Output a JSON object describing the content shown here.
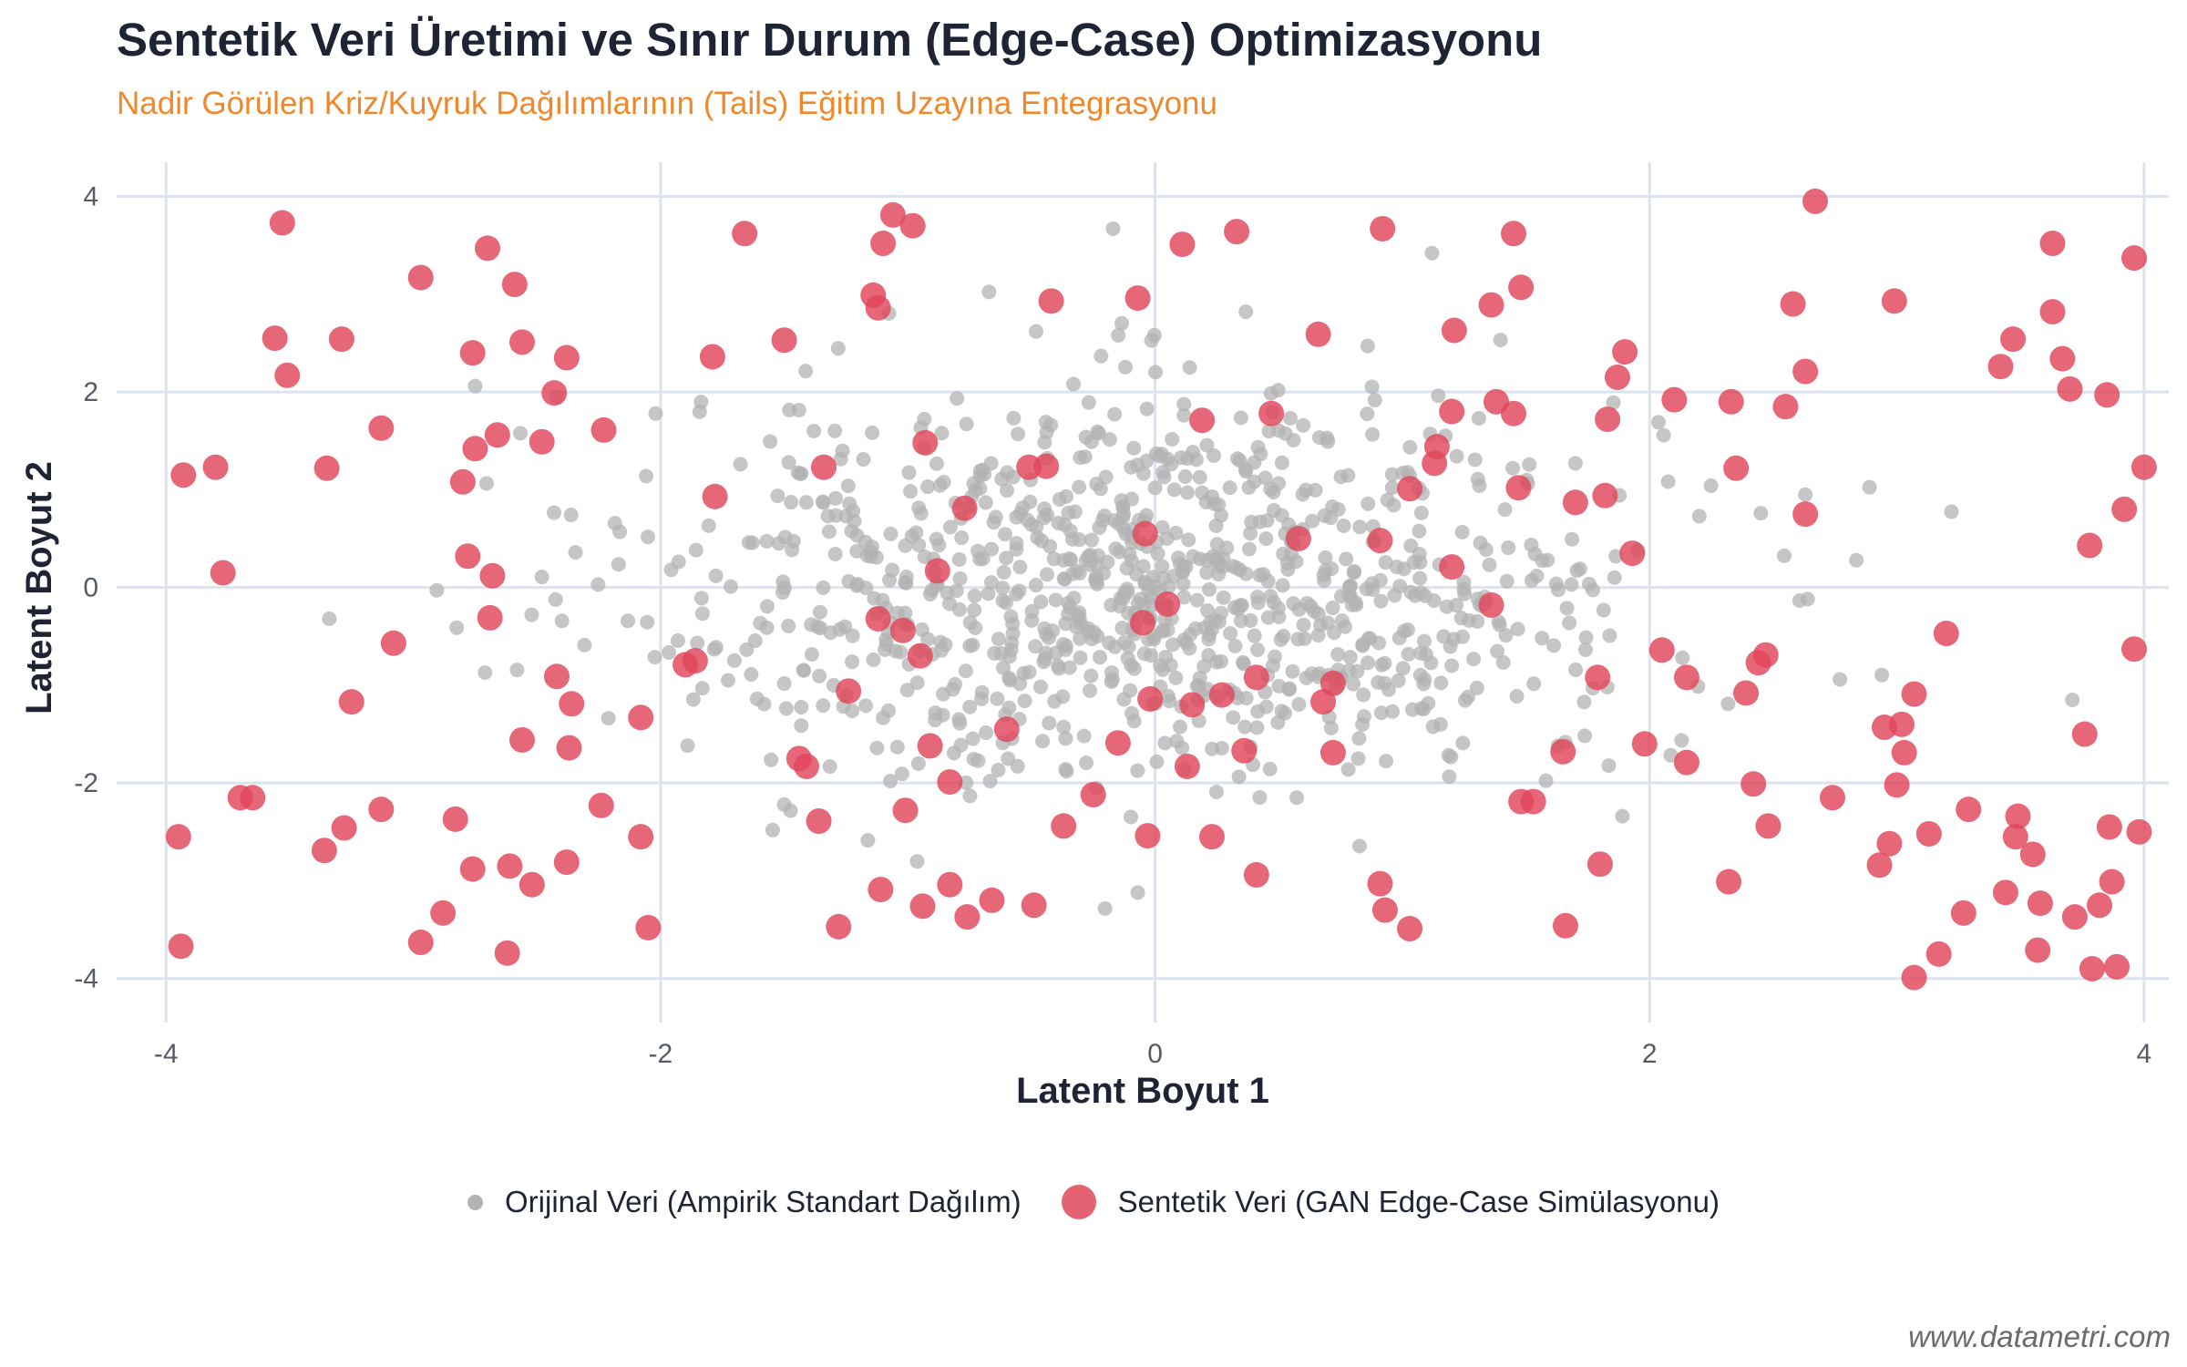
{
  "title": "Sentetik Veri Üretimi ve Sınır Durum (Edge-Case) Optimizasyonu",
  "subtitle": "Nadir Görülen Kriz/Kuyruk Dağılımlarının (Tails) Eğitim Uzayına Entegrasyonu",
  "caption": "www.datametri.com",
  "colors": {
    "original": "#b3b3b3",
    "synthetic": "#e0465a",
    "grid": "#dde3ee",
    "subtitle": "#f0882b"
  },
  "chart_data": {
    "type": "scatter",
    "xlabel": "Latent Boyut 1",
    "ylabel": "Latent Boyut 2",
    "xlim": [
      -4.2,
      4.1
    ],
    "ylim": [
      -4.45,
      4.35
    ],
    "xticks": [
      -4,
      -2,
      0,
      2,
      4
    ],
    "yticks": [
      -4,
      -2,
      0,
      2,
      4
    ],
    "grid": true,
    "legend_position": "bottom",
    "series": [
      {
        "name": "Orijinal Veri (Ampirik Standart Dağılım)",
        "color": "#b3b3b3",
        "n_points": 1000,
        "distribution": "bivariate standard normal, mean [0,0], sd 1",
        "sample_points": [
          [
            -0.17,
            3.67
          ],
          [
            1.12,
            3.42
          ],
          [
            0.14,
            2.25
          ],
          [
            -0.33,
            2.08
          ],
          [
            0.86,
            2.47
          ],
          [
            -2.02,
            1.78
          ],
          [
            -1.38,
            1.6
          ],
          [
            1.7,
            1.27
          ],
          [
            -1.25,
            0.73
          ],
          [
            0.55,
            0.47
          ],
          [
            2.63,
            0.95
          ],
          [
            2.45,
            0.76
          ],
          [
            -3.34,
            -0.32
          ],
          [
            -2.71,
            -0.87
          ],
          [
            -1.3,
            -1.0
          ],
          [
            -0.45,
            -0.76
          ],
          [
            0.23,
            -0.43
          ],
          [
            1.2,
            -0.8
          ],
          [
            1.63,
            -1.62
          ],
          [
            -1.5,
            -2.22
          ],
          [
            -0.07,
            -3.12
          ],
          [
            1.89,
            -2.34
          ],
          [
            2.77,
            -0.94
          ],
          [
            3.71,
            -1.15
          ],
          [
            -2.75,
            2.06
          ]
        ]
      },
      {
        "name": "Sentetik Veri (GAN Edge-Case Simülasyonu)",
        "color": "#e0465a",
        "points": [
          [
            -3.53,
            3.73
          ],
          [
            -2.7,
            3.47
          ],
          [
            -2.59,
            3.1
          ],
          [
            -2.97,
            3.17
          ],
          [
            -3.56,
            2.55
          ],
          [
            -3.51,
            2.17
          ],
          [
            -3.29,
            2.54
          ],
          [
            -2.76,
            2.4
          ],
          [
            -2.56,
            2.51
          ],
          [
            -2.38,
            2.35
          ],
          [
            -2.43,
            1.99
          ],
          [
            -3.13,
            1.63
          ],
          [
            -2.23,
            1.61
          ],
          [
            -2.66,
            1.56
          ],
          [
            -2.75,
            1.42
          ],
          [
            -2.48,
            1.49
          ],
          [
            -2.8,
            1.08
          ],
          [
            -3.35,
            1.22
          ],
          [
            -3.8,
            1.23
          ],
          [
            -3.93,
            1.15
          ],
          [
            -3.77,
            0.15
          ],
          [
            -2.78,
            0.32
          ],
          [
            -2.68,
            0.12
          ],
          [
            -2.69,
            -0.31
          ],
          [
            -3.08,
            -0.57
          ],
          [
            -2.42,
            -0.91
          ],
          [
            -2.36,
            -1.19
          ],
          [
            -3.25,
            -1.17
          ],
          [
            -2.56,
            -1.56
          ],
          [
            -2.37,
            -1.64
          ],
          [
            -3.7,
            -2.15
          ],
          [
            -3.65,
            -2.15
          ],
          [
            -2.24,
            -2.23
          ],
          [
            -3.13,
            -2.27
          ],
          [
            -3.28,
            -2.46
          ],
          [
            -2.83,
            -2.37
          ],
          [
            -3.36,
            -2.69
          ],
          [
            -3.95,
            -2.55
          ],
          [
            -2.76,
            -2.88
          ],
          [
            -2.61,
            -2.85
          ],
          [
            -2.38,
            -2.81
          ],
          [
            -2.52,
            -3.04
          ],
          [
            -2.88,
            -3.33
          ],
          [
            -2.97,
            -3.63
          ],
          [
            -2.62,
            -3.74
          ],
          [
            -3.94,
            -3.67
          ],
          [
            -2.05,
            -3.48
          ],
          [
            -2.08,
            -2.55
          ],
          [
            -2.08,
            -1.33
          ],
          [
            -1.9,
            -0.79
          ],
          [
            -1.86,
            -0.75
          ],
          [
            -1.78,
            0.93
          ],
          [
            -1.79,
            2.36
          ],
          [
            -1.66,
            3.62
          ],
          [
            -1.5,
            2.53
          ],
          [
            -1.34,
            1.23
          ],
          [
            -1.1,
            3.52
          ],
          [
            -1.06,
            3.81
          ],
          [
            -0.98,
            3.7
          ],
          [
            -1.14,
            2.99
          ],
          [
            -1.12,
            2.86
          ],
          [
            -0.42,
            2.93
          ],
          [
            -0.93,
            1.48
          ],
          [
            -0.88,
            0.17
          ],
          [
            -1.12,
            -0.32
          ],
          [
            -1.02,
            -0.44
          ],
          [
            -0.95,
            -0.7
          ],
          [
            -1.24,
            -1.06
          ],
          [
            -0.91,
            -1.62
          ],
          [
            -1.44,
            -1.75
          ],
          [
            -1.41,
            -1.83
          ],
          [
            -1.36,
            -2.39
          ],
          [
            -1.01,
            -2.28
          ],
          [
            -0.83,
            -1.99
          ],
          [
            -0.6,
            -1.45
          ],
          [
            -0.66,
            -3.2
          ],
          [
            -0.83,
            -3.04
          ],
          [
            -0.94,
            -3.26
          ],
          [
            -1.11,
            -3.09
          ],
          [
            -1.28,
            -3.47
          ],
          [
            -0.76,
            -3.37
          ],
          [
            -0.49,
            -3.25
          ],
          [
            -0.37,
            -2.44
          ],
          [
            -0.25,
            -2.12
          ],
          [
            -0.15,
            -1.59
          ],
          [
            -0.03,
            -2.54
          ],
          [
            -0.02,
            -1.14
          ],
          [
            -0.05,
            -0.36
          ],
          [
            0.05,
            -0.17
          ],
          [
            -0.04,
            0.55
          ],
          [
            -0.77,
            0.81
          ],
          [
            -0.51,
            1.23
          ],
          [
            -0.44,
            1.24
          ],
          [
            -0.07,
            2.96
          ],
          [
            0.11,
            3.51
          ],
          [
            0.33,
            3.64
          ],
          [
            0.19,
            1.71
          ],
          [
            0.47,
            1.78
          ],
          [
            0.58,
            0.5
          ],
          [
            0.41,
            -0.92
          ],
          [
            0.68,
            -1.17
          ],
          [
            0.72,
            -0.98
          ],
          [
            0.72,
            -1.69
          ],
          [
            0.15,
            -1.2
          ],
          [
            0.27,
            -1.1
          ],
          [
            0.13,
            -1.83
          ],
          [
            0.36,
            -1.67
          ],
          [
            0.23,
            -2.55
          ],
          [
            0.41,
            -2.94
          ],
          [
            0.91,
            -3.03
          ],
          [
            0.93,
            -3.3
          ],
          [
            1.03,
            -3.49
          ],
          [
            0.91,
            0.48
          ],
          [
            0.92,
            3.67
          ],
          [
            0.66,
            2.59
          ],
          [
            1.03,
            1.01
          ],
          [
            1.13,
            1.27
          ],
          [
            1.14,
            1.44
          ],
          [
            1.2,
            0.21
          ],
          [
            1.2,
            1.8
          ],
          [
            1.21,
            2.63
          ],
          [
            1.36,
            2.89
          ],
          [
            1.38,
            1.9
          ],
          [
            1.45,
            1.78
          ],
          [
            1.48,
            3.07
          ],
          [
            1.47,
            1.02
          ],
          [
            1.45,
            3.62
          ],
          [
            1.36,
            -0.18
          ],
          [
            1.48,
            -2.19
          ],
          [
            1.53,
            -2.19
          ],
          [
            1.65,
            -1.68
          ],
          [
            1.66,
            -3.46
          ],
          [
            1.8,
            -2.83
          ],
          [
            1.7,
            0.87
          ],
          [
            1.82,
            0.94
          ],
          [
            1.9,
            2.41
          ],
          [
            1.87,
            2.15
          ],
          [
            1.83,
            1.72
          ],
          [
            1.93,
            0.35
          ],
          [
            1.79,
            -0.92
          ],
          [
            1.98,
            -1.6
          ],
          [
            2.05,
            -0.64
          ],
          [
            2.1,
            1.92
          ],
          [
            2.15,
            -0.92
          ],
          [
            2.15,
            -1.79
          ],
          [
            2.33,
            1.9
          ],
          [
            2.35,
            1.22
          ],
          [
            2.32,
            -3.01
          ],
          [
            2.39,
            -1.08
          ],
          [
            2.44,
            -0.77
          ],
          [
            2.47,
            -0.69
          ],
          [
            2.42,
            -2.01
          ],
          [
            2.48,
            -2.44
          ],
          [
            2.55,
            1.85
          ],
          [
            2.58,
            2.9
          ],
          [
            2.63,
            2.21
          ],
          [
            2.63,
            0.75
          ],
          [
            2.67,
            3.95
          ],
          [
            2.74,
            -2.15
          ],
          [
            2.93,
            -2.84
          ],
          [
            2.95,
            -1.43
          ],
          [
            2.97,
            -2.62
          ],
          [
            2.99,
            2.93
          ],
          [
            3.0,
            -2.02
          ],
          [
            3.02,
            -1.4
          ],
          [
            3.03,
            -1.69
          ],
          [
            3.07,
            -1.09
          ],
          [
            3.07,
            -3.99
          ],
          [
            3.13,
            -2.52
          ],
          [
            3.17,
            -3.75
          ],
          [
            3.2,
            -0.47
          ],
          [
            3.27,
            -3.33
          ],
          [
            3.29,
            -2.27
          ],
          [
            3.42,
            2.26
          ],
          [
            3.44,
            -3.12
          ],
          [
            3.47,
            2.54
          ],
          [
            3.48,
            -2.55
          ],
          [
            3.49,
            -2.34
          ],
          [
            3.55,
            -2.73
          ],
          [
            3.57,
            -3.71
          ],
          [
            3.58,
            -3.23
          ],
          [
            3.63,
            3.52
          ],
          [
            3.63,
            2.82
          ],
          [
            3.67,
            2.34
          ],
          [
            3.7,
            2.03
          ],
          [
            3.72,
            -3.37
          ],
          [
            3.76,
            -1.5
          ],
          [
            3.78,
            0.43
          ],
          [
            3.79,
            -3.9
          ],
          [
            3.82,
            -3.25
          ],
          [
            3.85,
            1.97
          ],
          [
            3.86,
            -2.45
          ],
          [
            3.87,
            -3.01
          ],
          [
            3.89,
            -3.88
          ],
          [
            3.92,
            0.8
          ],
          [
            3.96,
            -0.63
          ],
          [
            3.96,
            3.37
          ],
          [
            3.98,
            -2.5
          ],
          [
            4.0,
            1.23
          ]
        ]
      }
    ]
  }
}
